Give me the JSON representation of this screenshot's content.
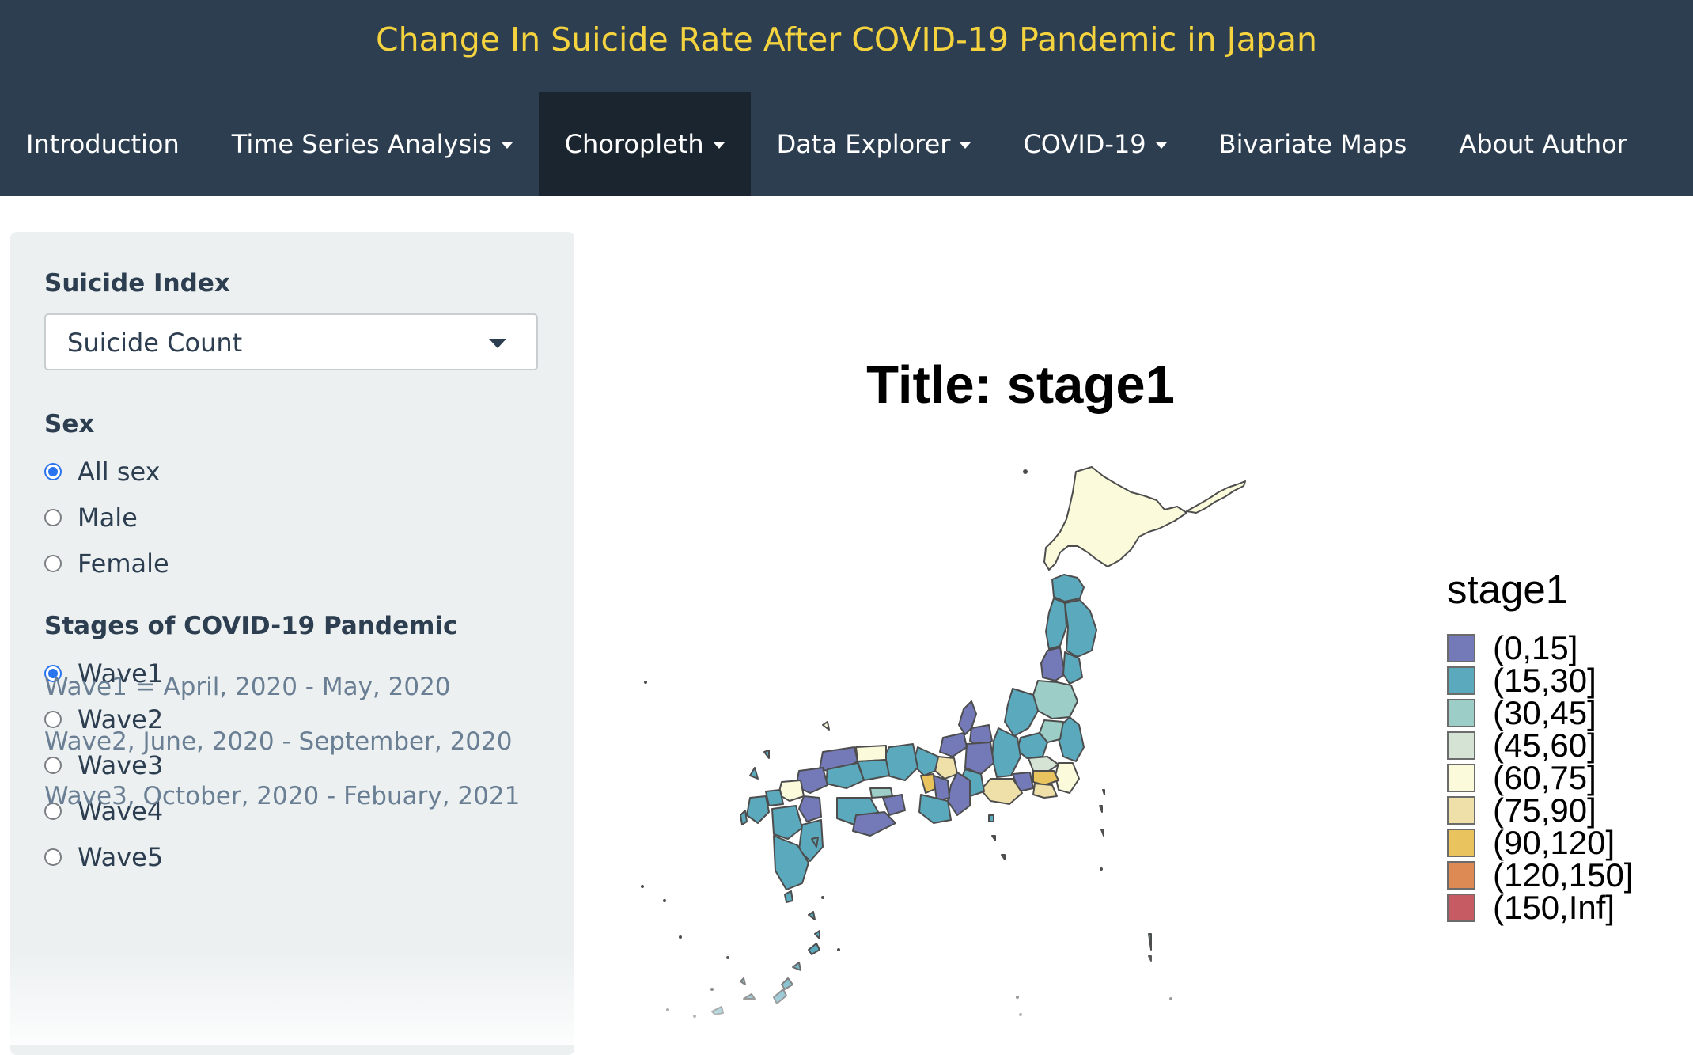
{
  "header": {
    "title": "Change In Suicide Rate After COVID-19 Pandemic in Japan",
    "nav": [
      {
        "label": "Introduction",
        "dropdown": false,
        "active": false
      },
      {
        "label": "Time Series Analysis",
        "dropdown": true,
        "active": false
      },
      {
        "label": "Choropleth",
        "dropdown": true,
        "active": true
      },
      {
        "label": "Data Explorer",
        "dropdown": true,
        "active": false
      },
      {
        "label": "COVID-19",
        "dropdown": true,
        "active": false
      },
      {
        "label": "Bivariate Maps",
        "dropdown": false,
        "active": false
      },
      {
        "label": "About Author",
        "dropdown": false,
        "active": false
      }
    ]
  },
  "sidebar": {
    "index_label": "Suicide Index",
    "index_value": "Suicide Count",
    "sex_label": "Sex",
    "sex_options": [
      {
        "label": "All sex",
        "checked": true
      },
      {
        "label": "Male",
        "checked": false
      },
      {
        "label": "Female",
        "checked": false
      }
    ],
    "stage_label": "Stages of COVID-19 Pandemic",
    "stage_options": [
      {
        "label": "Wave1",
        "checked": true
      },
      {
        "label": "Wave2",
        "checked": false
      },
      {
        "label": "Wave3",
        "checked": false
      },
      {
        "label": "Wave4",
        "checked": false
      },
      {
        "label": "Wave5",
        "checked": false
      }
    ],
    "notes": [
      "Wave1 = April, 2020 - May, 2020",
      "Wave2, June, 2020 - September, 2020",
      "Wave3, October, 2020 - Febuary, 2021"
    ]
  },
  "map": {
    "title": "Title: stage1",
    "legend_title": "stage1",
    "legend": [
      {
        "label": "(0,15]",
        "color": "#7479b8"
      },
      {
        "label": "(15,30]",
        "color": "#5aa9bd"
      },
      {
        "label": "(30,45]",
        "color": "#9ccdc6"
      },
      {
        "label": "(45,60]",
        "color": "#d4e3d4"
      },
      {
        "label": "(60,75]",
        "color": "#fbfbdc"
      },
      {
        "label": "(75,90]",
        "color": "#efe0aa"
      },
      {
        "label": "(90,120]",
        "color": "#e8c35e"
      },
      {
        "label": "(120,150]",
        "color": "#dd8a55"
      },
      {
        "label": "(150,Inf]",
        "color": "#c65b63"
      }
    ]
  }
}
